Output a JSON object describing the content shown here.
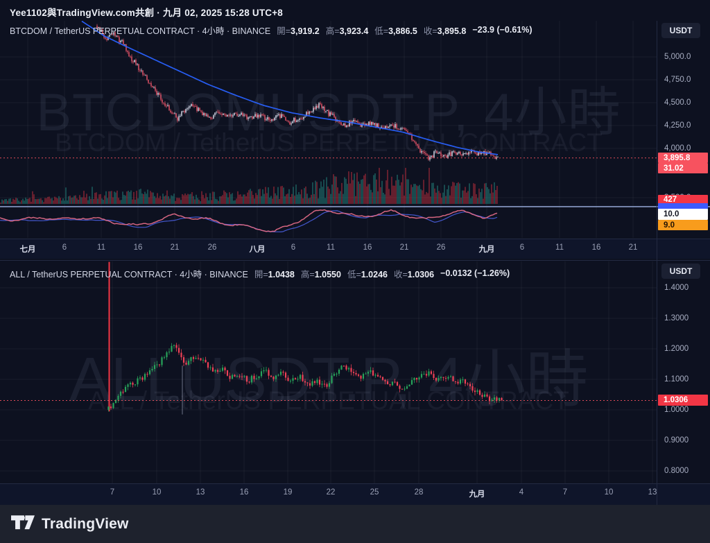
{
  "header": {
    "title": "Yee1102與TradingView.com共創 · 九月 02, 2025 15:28 UTC+8"
  },
  "footer": {
    "brand": "TradingView"
  },
  "colors": {
    "background": "#0d1120",
    "panel_border": "#232a42",
    "accent_blue": "#2962ff",
    "up_top": "#dfe3f2",
    "down_top": "#f0566b",
    "up_green": "#27a35a",
    "down_red": "#ef4156",
    "label_red": "#f23645",
    "label_pink": "#f7525f",
    "label_orange": "#f89c1c",
    "label_white": "#ffffff",
    "label_blue": "#3d5afe",
    "axis_text": "#a8aec2"
  },
  "top_chart": {
    "legend": {
      "title": "BTCDOM / TetherUS PERPETUAL CONTRACT · 4小時 · BINANCE",
      "ohlc": [
        {
          "label": "開=",
          "value": "3,919.2"
        },
        {
          "label": "高=",
          "value": "3,923.4"
        },
        {
          "label": "低=",
          "value": "3,886.5"
        },
        {
          "label": "收=",
          "value": "3,895.8"
        }
      ],
      "change": "−23.9 (−0.61%)"
    },
    "watermark_title": "BTCDOMUSDT.P, 4小時",
    "watermark_subtitle": "BTCDOM / TetherUS PERPETUAL CONTRACT",
    "currency_button": "USDT",
    "axis": {
      "price_labels": [
        "5,000.0",
        "4,750.0",
        "4,500.0",
        "4,250.0",
        "4,000.0",
        "3,500.0"
      ],
      "time_labels": [
        "七月",
        "6",
        "11",
        "16",
        "21",
        "26",
        "八月",
        "6",
        "11",
        "16",
        "21",
        "26",
        "九月",
        "6",
        "11",
        "16",
        "21"
      ],
      "last_price": "3,895.8",
      "indicator_values": {
        "pink": "31.02",
        "red": "427",
        "white": "10.0",
        "orange": "9.0"
      }
    },
    "chart_data": {
      "type": "candlestick",
      "symbol": "BTCDOMUSDT.P",
      "interval": "4小時",
      "exchange": "BINANCE",
      "ohlc": {
        "open": 3919.2,
        "high": 3923.4,
        "low": 3886.5,
        "close": 3895.8,
        "change": -23.9,
        "change_pct": -0.61
      },
      "y_ticks": [
        5000.0,
        4750.0,
        4500.0,
        4250.0,
        4000.0,
        3500.0
      ],
      "x_ticks": [
        "七月",
        "6",
        "11",
        "16",
        "21",
        "26",
        "八月",
        "6",
        "11",
        "16",
        "21",
        "26",
        "九月",
        "6",
        "11",
        "16",
        "21"
      ],
      "price_path": [
        [
          140,
          5340
        ],
        [
          148,
          5290
        ],
        [
          156,
          5170
        ],
        [
          164,
          5260
        ],
        [
          172,
          5200
        ],
        [
          180,
          5150
        ],
        [
          190,
          5000
        ],
        [
          205,
          4850
        ],
        [
          220,
          4680
        ],
        [
          235,
          4530
        ],
        [
          248,
          4420
        ],
        [
          258,
          4330
        ],
        [
          268,
          4420
        ],
        [
          280,
          4470
        ],
        [
          292,
          4400
        ],
        [
          305,
          4335
        ],
        [
          318,
          4400
        ],
        [
          330,
          4340
        ],
        [
          345,
          4385
        ],
        [
          360,
          4320
        ],
        [
          375,
          4370
        ],
        [
          390,
          4310
        ],
        [
          405,
          4360
        ],
        [
          420,
          4290
        ],
        [
          435,
          4330
        ],
        [
          450,
          4420
        ],
        [
          462,
          4470
        ],
        [
          472,
          4400
        ],
        [
          485,
          4330
        ],
        [
          500,
          4255
        ],
        [
          512,
          4300
        ],
        [
          525,
          4250
        ],
        [
          540,
          4280
        ],
        [
          552,
          4230
        ],
        [
          565,
          4260
        ],
        [
          578,
          4215
        ],
        [
          590,
          4170
        ],
        [
          600,
          4050
        ],
        [
          610,
          3960
        ],
        [
          620,
          3900
        ],
        [
          632,
          3960
        ],
        [
          645,
          3920
        ],
        [
          658,
          3965
        ],
        [
          670,
          3935
        ],
        [
          682,
          3975
        ],
        [
          695,
          3930
        ],
        [
          706,
          3958
        ],
        [
          718,
          3896
        ]
      ],
      "ma_path": [
        [
          118,
          5390
        ],
        [
          150,
          5230
        ],
        [
          180,
          5120
        ],
        [
          220,
          4980
        ],
        [
          260,
          4840
        ],
        [
          300,
          4700
        ],
        [
          340,
          4580
        ],
        [
          380,
          4470
        ],
        [
          420,
          4390
        ],
        [
          460,
          4335
        ],
        [
          500,
          4290
        ],
        [
          540,
          4235
        ],
        [
          580,
          4180
        ],
        [
          620,
          4090
        ],
        [
          660,
          4010
        ],
        [
          690,
          3962
        ],
        [
          718,
          3932
        ]
      ],
      "volume_profile": [
        [
          0,
          5
        ],
        [
          40,
          6
        ],
        [
          80,
          8
        ],
        [
          120,
          9
        ],
        [
          160,
          12
        ],
        [
          200,
          14
        ],
        [
          240,
          12
        ],
        [
          280,
          11
        ],
        [
          320,
          12
        ],
        [
          360,
          14
        ],
        [
          400,
          16
        ],
        [
          440,
          18
        ],
        [
          470,
          24
        ],
        [
          500,
          30
        ],
        [
          530,
          34
        ],
        [
          560,
          30
        ],
        [
          590,
          26
        ],
        [
          620,
          22
        ],
        [
          650,
          20
        ],
        [
          680,
          18
        ],
        [
          718,
          22
        ]
      ],
      "oscillator_path": [
        [
          0,
          314
        ],
        [
          30,
          318
        ],
        [
          60,
          313
        ],
        [
          90,
          317
        ],
        [
          120,
          313
        ],
        [
          150,
          318
        ],
        [
          175,
          322
        ],
        [
          200,
          326
        ],
        [
          225,
          318
        ],
        [
          250,
          311
        ],
        [
          275,
          313
        ],
        [
          300,
          317
        ],
        [
          325,
          322
        ],
        [
          350,
          326
        ],
        [
          375,
          330
        ],
        [
          395,
          334
        ],
        [
          415,
          327
        ],
        [
          435,
          315
        ],
        [
          455,
          306
        ],
        [
          475,
          303
        ],
        [
          495,
          307
        ],
        [
          515,
          313
        ],
        [
          540,
          309
        ],
        [
          565,
          305
        ],
        [
          590,
          311
        ],
        [
          615,
          317
        ],
        [
          640,
          309
        ],
        [
          660,
          305
        ],
        [
          680,
          308
        ],
        [
          700,
          313
        ],
        [
          718,
          310
        ]
      ]
    }
  },
  "bottom_chart": {
    "legend": {
      "title": "ALL / TetherUS PERPETUAL CONTRACT · 4小時 · BINANCE",
      "ohlc": [
        {
          "label": "開=",
          "value": "1.0438"
        },
        {
          "label": "高=",
          "value": "1.0550"
        },
        {
          "label": "低=",
          "value": "1.0246"
        },
        {
          "label": "收=",
          "value": "1.0306"
        }
      ],
      "change": "−0.0132 (−1.26%)"
    },
    "watermark_title": "ALLUSDT.P, 4小時",
    "watermark_subtitle": "ALL / TetherUS PERPETUAL CONTRACT",
    "currency_button": "USDT",
    "axis": {
      "price_labels": [
        "1.4000",
        "1.3000",
        "1.2000",
        "1.1000",
        "1.0000",
        "0.9000",
        "0.8000"
      ],
      "time_labels": [
        "7",
        "10",
        "13",
        "16",
        "19",
        "22",
        "25",
        "28",
        "九月",
        "4",
        "7",
        "10",
        "13"
      ],
      "last_price": "1.0306"
    },
    "chart_data": {
      "type": "candlestick",
      "symbol": "ALLUSDT.P",
      "interval": "4小時",
      "exchange": "BINANCE",
      "ohlc": {
        "open": 1.0438,
        "high": 1.055,
        "low": 1.0246,
        "close": 1.0306,
        "change": -0.0132,
        "change_pct": -1.26
      },
      "y_ticks": [
        1.4,
        1.3,
        1.2,
        1.1,
        1.0,
        0.9,
        0.8
      ],
      "x_ticks": [
        "7",
        "10",
        "13",
        "16",
        "19",
        "22",
        "25",
        "28",
        "九月",
        "4",
        "7",
        "10",
        "13"
      ],
      "price_path": [
        [
          156,
          1.0
        ],
        [
          162,
          1.01
        ],
        [
          170,
          1.03
        ],
        [
          180,
          1.06
        ],
        [
          192,
          1.085
        ],
        [
          205,
          1.1
        ],
        [
          218,
          1.12
        ],
        [
          232,
          1.15
        ],
        [
          245,
          1.19
        ],
        [
          255,
          1.215
        ],
        [
          263,
          1.17
        ],
        [
          272,
          1.15
        ],
        [
          285,
          1.18
        ],
        [
          295,
          1.165
        ],
        [
          305,
          1.14
        ],
        [
          315,
          1.12
        ],
        [
          325,
          1.14
        ],
        [
          336,
          1.105
        ],
        [
          348,
          1.12
        ],
        [
          360,
          1.095
        ],
        [
          372,
          1.11
        ],
        [
          385,
          1.13
        ],
        [
          398,
          1.1
        ],
        [
          410,
          1.12
        ],
        [
          422,
          1.09
        ],
        [
          435,
          1.11
        ],
        [
          448,
          1.08
        ],
        [
          460,
          1.1
        ],
        [
          472,
          1.075
        ],
        [
          485,
          1.115
        ],
        [
          498,
          1.15
        ],
        [
          510,
          1.125
        ],
        [
          522,
          1.1
        ],
        [
          535,
          1.13
        ],
        [
          548,
          1.11
        ],
        [
          560,
          1.085
        ],
        [
          572,
          1.09
        ],
        [
          585,
          1.07
        ],
        [
          598,
          1.1
        ],
        [
          610,
          1.11
        ],
        [
          622,
          1.12
        ],
        [
          635,
          1.1
        ],
        [
          648,
          1.11
        ],
        [
          660,
          1.09
        ],
        [
          672,
          1.1
        ],
        [
          685,
          1.07
        ],
        [
          698,
          1.05
        ],
        [
          710,
          1.035
        ],
        [
          725,
          1.031
        ]
      ],
      "spike_candle": {
        "x": 157,
        "high": 1.485,
        "low": 0.995
      },
      "long_wick": {
        "x": 263,
        "from": 1.145,
        "to": 0.985
      }
    }
  }
}
